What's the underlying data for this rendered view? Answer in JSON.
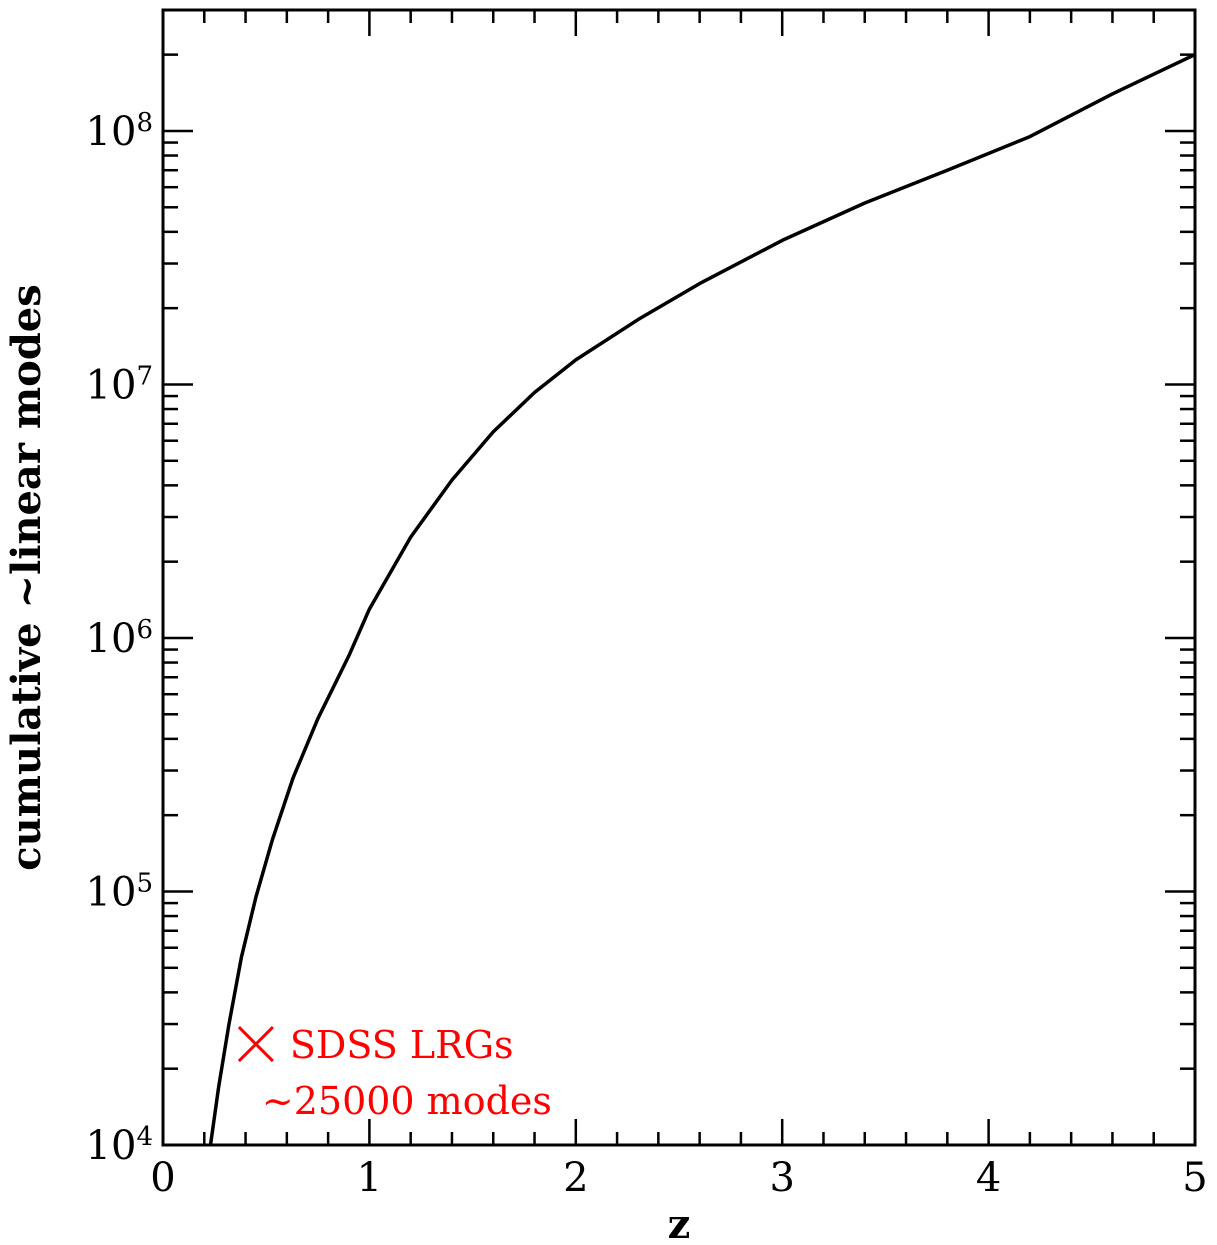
{
  "chart_data": {
    "type": "line",
    "title": "",
    "xlabel": "z",
    "ylabel": "cumulative ~linear modes",
    "xlim": [
      0,
      5
    ],
    "ylim": [
      10000,
      300000000
    ],
    "y_scale": "log",
    "grid": false,
    "x_ticks": [
      {
        "value": 0,
        "label": "0"
      },
      {
        "value": 1,
        "label": "1"
      },
      {
        "value": 2,
        "label": "2"
      },
      {
        "value": 3,
        "label": "3"
      },
      {
        "value": 4,
        "label": "4"
      },
      {
        "value": 5,
        "label": "5"
      }
    ],
    "y_ticks": [
      {
        "value": 10000,
        "base": "10",
        "exp": "4"
      },
      {
        "value": 100000,
        "base": "10",
        "exp": "5"
      },
      {
        "value": 1000000,
        "base": "10",
        "exp": "6"
      },
      {
        "value": 10000000,
        "base": "10",
        "exp": "7"
      },
      {
        "value": 100000000,
        "base": "10",
        "exp": "8"
      }
    ],
    "series": [
      {
        "color": "#000000",
        "x": [
          0.23,
          0.27,
          0.32,
          0.38,
          0.45,
          0.53,
          0.63,
          0.75,
          0.9,
          1.0,
          1.2,
          1.4,
          1.6,
          1.8,
          2.0,
          2.3,
          2.6,
          3.0,
          3.4,
          3.8,
          4.2,
          4.6,
          5.0
        ],
        "y": [
          10000,
          17000,
          30000,
          55000,
          95000,
          160000,
          280000,
          480000,
          850000,
          1300000,
          2500000,
          4200000,
          6500000,
          9300000,
          12500000,
          18000000,
          25000000,
          37000000,
          52000000,
          70000000,
          95000000,
          140000000,
          200000000
        ]
      }
    ],
    "annotations": [
      {
        "marker": "×",
        "x": 0.45,
        "y": 25000,
        "color": "#ff0000",
        "line1": "SDSS LRGs",
        "line2": "~25000 modes"
      }
    ]
  }
}
